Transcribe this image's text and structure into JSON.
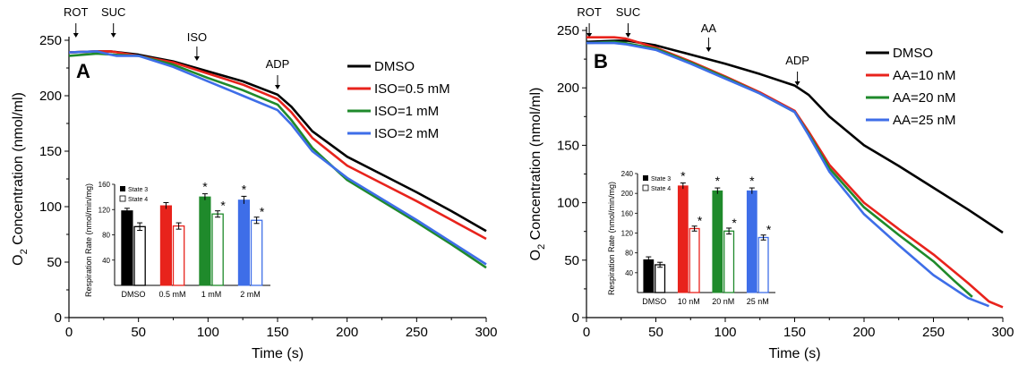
{
  "colors": {
    "black": "#000000",
    "red": "#e8231c",
    "green": "#1f8a2b",
    "blue": "#3e6ee8"
  },
  "chart_data": [
    {
      "type": "line",
      "panel_label": "A",
      "xlabel": "Time (s)",
      "ylabel_prefix": "O",
      "ylabel_sub": "2",
      "ylabel_suffix": " Concentration (nmol/ml)",
      "xlim": [
        0,
        300
      ],
      "ylim": [
        0,
        250
      ],
      "xticks": [
        0,
        50,
        100,
        150,
        200,
        250,
        300
      ],
      "yticks": [
        0,
        50,
        100,
        150,
        200,
        250
      ],
      "annotations": [
        {
          "text": "ROT",
          "x": 5
        },
        {
          "text": "SUC",
          "x": 32
        },
        {
          "text": "ISO",
          "x": 92
        },
        {
          "text": "ADP",
          "x": 150
        }
      ],
      "legend": {
        "position": "top-right"
      },
      "series": [
        {
          "name": "DMSO",
          "color": "#000000",
          "points": [
            [
              0,
              239
            ],
            [
              20,
              240
            ],
            [
              30,
              240
            ],
            [
              50,
              237
            ],
            [
              75,
              231
            ],
            [
              100,
              222
            ],
            [
              125,
              213
            ],
            [
              150,
              201
            ],
            [
              160,
              190
            ],
            [
              175,
              168
            ],
            [
              200,
              145
            ],
            [
              225,
              129
            ],
            [
              250,
              113
            ],
            [
              275,
              96
            ],
            [
              300,
              78
            ]
          ]
        },
        {
          "name": "ISO=0.5 mM",
          "color": "#e8231c",
          "points": [
            [
              0,
              239
            ],
            [
              20,
              240
            ],
            [
              30,
              240
            ],
            [
              50,
              236
            ],
            [
              75,
              230
            ],
            [
              100,
              220
            ],
            [
              125,
              210
            ],
            [
              150,
              197
            ],
            [
              160,
              185
            ],
            [
              175,
              162
            ],
            [
              200,
              137
            ],
            [
              225,
              121
            ],
            [
              250,
              105
            ],
            [
              275,
              88
            ],
            [
              300,
              71
            ]
          ]
        },
        {
          "name": "ISO=1 mM",
          "color": "#1f8a2b",
          "points": [
            [
              0,
              236
            ],
            [
              20,
              238
            ],
            [
              32,
              237
            ],
            [
              50,
              236
            ],
            [
              75,
              228
            ],
            [
              100,
              216
            ],
            [
              125,
              205
            ],
            [
              150,
              192
            ],
            [
              160,
              178
            ],
            [
              175,
              153
            ],
            [
              200,
              124
            ],
            [
              225,
              105
            ],
            [
              250,
              86
            ],
            [
              275,
              66
            ],
            [
              300,
              45
            ]
          ]
        },
        {
          "name": "ISO=2 mM",
          "color": "#3e6ee8",
          "points": [
            [
              0,
              239
            ],
            [
              20,
              240
            ],
            [
              30,
              237
            ],
            [
              34,
              236
            ],
            [
              50,
              236
            ],
            [
              75,
              226
            ],
            [
              100,
              213
            ],
            [
              125,
              200
            ],
            [
              150,
              187
            ],
            [
              160,
              174
            ],
            [
              175,
              150
            ],
            [
              200,
              126
            ],
            [
              225,
              107
            ],
            [
              250,
              88
            ],
            [
              275,
              68
            ],
            [
              300,
              48
            ]
          ]
        }
      ],
      "inset": {
        "type": "bar",
        "ylabel": "Respiration Rate (nmol/min/mg)",
        "ylim": [
          0,
          160
        ],
        "yticks": [
          40,
          80,
          120,
          160
        ],
        "categories": [
          "DMSO",
          "0.5 mM",
          "1 mM",
          "2 mM"
        ],
        "colors": [
          "#000000",
          "#e8231c",
          "#1f8a2b",
          "#3e6ee8"
        ],
        "legend": [
          "State 3",
          "State 4"
        ],
        "state3": [
          118,
          126,
          140,
          135
        ],
        "state3_err": [
          4,
          5,
          5,
          6
        ],
        "state4": [
          93,
          94,
          113,
          103
        ],
        "state4_err": [
          6,
          5,
          5,
          5
        ],
        "star3": [
          false,
          false,
          true,
          true
        ],
        "star4": [
          false,
          false,
          true,
          true
        ]
      }
    },
    {
      "type": "line",
      "panel_label": "B",
      "xlabel": "Time (s)",
      "ylabel_prefix": "O",
      "ylabel_sub": "2",
      "ylabel_suffix": " Concentration (nmol/ml)",
      "xlim": [
        0,
        300
      ],
      "ylim": [
        0,
        250
      ],
      "xticks": [
        0,
        50,
        100,
        150,
        200,
        250,
        300
      ],
      "yticks": [
        0,
        50,
        100,
        150,
        200,
        250
      ],
      "annotations": [
        {
          "text": "ROT",
          "x": 2
        },
        {
          "text": "SUC",
          "x": 30
        },
        {
          "text": "AA",
          "x": 88
        },
        {
          "text": "ADP",
          "x": 152
        }
      ],
      "legend": {
        "position": "top-right"
      },
      "series": [
        {
          "name": "DMSO",
          "color": "#000000",
          "points": [
            [
              0,
              240
            ],
            [
              20,
              241
            ],
            [
              30,
              241
            ],
            [
              50,
              237
            ],
            [
              75,
              229
            ],
            [
              100,
              221
            ],
            [
              125,
              212
            ],
            [
              150,
              202
            ],
            [
              160,
              194
            ],
            [
              175,
              175
            ],
            [
              200,
              150
            ],
            [
              225,
              132
            ],
            [
              250,
              113
            ],
            [
              275,
              94
            ],
            [
              300,
              74
            ]
          ]
        },
        {
          "name": "AA=10 nM",
          "color": "#e8231c",
          "points": [
            [
              0,
              244
            ],
            [
              20,
              244
            ],
            [
              28,
              243
            ],
            [
              50,
              235
            ],
            [
              75,
              223
            ],
            [
              100,
              210
            ],
            [
              125,
              196
            ],
            [
              150,
              180
            ],
            [
              160,
              162
            ],
            [
              175,
              133
            ],
            [
              200,
              100
            ],
            [
              225,
              77
            ],
            [
              250,
              55
            ],
            [
              275,
              30
            ],
            [
              290,
              14
            ],
            [
              300,
              9
            ]
          ]
        },
        {
          "name": "AA=20 nM",
          "color": "#1f8a2b",
          "points": [
            [
              0,
              239
            ],
            [
              20,
              240
            ],
            [
              28,
              239
            ],
            [
              50,
              234
            ],
            [
              75,
              222
            ],
            [
              100,
              209
            ],
            [
              125,
              195
            ],
            [
              150,
              179
            ],
            [
              160,
              160
            ],
            [
              175,
              130
            ],
            [
              200,
              96
            ],
            [
              225,
              72
            ],
            [
              250,
              49
            ],
            [
              265,
              32
            ],
            [
              278,
              18
            ]
          ]
        },
        {
          "name": "AA=25 nM",
          "color": "#3e6ee8",
          "points": [
            [
              0,
              239
            ],
            [
              20,
              239
            ],
            [
              28,
              238
            ],
            [
              50,
              233
            ],
            [
              75,
              221
            ],
            [
              100,
              208
            ],
            [
              125,
              195
            ],
            [
              150,
              179
            ],
            [
              160,
              159
            ],
            [
              175,
              127
            ],
            [
              200,
              90
            ],
            [
              225,
              63
            ],
            [
              250,
              37
            ],
            [
              275,
              17
            ],
            [
              290,
              10
            ]
          ]
        }
      ],
      "inset": {
        "type": "bar",
        "ylabel": "Respiration Rate (nmol/min/mg)",
        "ylim": [
          0,
          240
        ],
        "yticks": [
          40,
          80,
          120,
          160,
          200,
          240
        ],
        "categories": [
          "DMSO",
          "10 nM",
          "20 nM",
          "25 nM"
        ],
        "colors": [
          "#000000",
          "#e8231c",
          "#1f8a2b",
          "#3e6ee8"
        ],
        "legend": [
          "State 3",
          "State 4"
        ],
        "state3": [
          66,
          215,
          205,
          205
        ],
        "state3_err": [
          6,
          6,
          6,
          6
        ],
        "state4": [
          56,
          129,
          124,
          111
        ],
        "state4_err": [
          5,
          5,
          6,
          5
        ],
        "star3": [
          false,
          true,
          true,
          true
        ],
        "star4": [
          false,
          true,
          true,
          true
        ]
      }
    }
  ]
}
